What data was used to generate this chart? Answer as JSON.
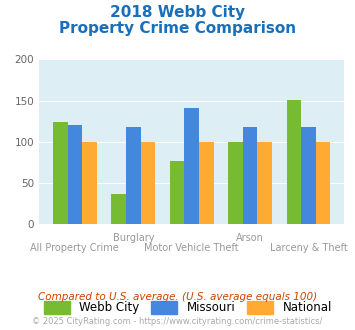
{
  "title_line1": "2018 Webb City",
  "title_line2": "Property Crime Comparison",
  "title_color": "#1a6fbb",
  "categories": [
    "All Property Crime",
    "Burglary",
    "Motor Vehicle Theft",
    "Arson",
    "Larceny & Theft"
  ],
  "x_labels_top": [
    "",
    "Burglary",
    "",
    "Arson",
    ""
  ],
  "x_labels_bottom": [
    "All Property Crime",
    "",
    "Motor Vehicle Theft",
    "",
    "Larceny & Theft"
  ],
  "webb_city": [
    124,
    37,
    77,
    100,
    151
  ],
  "missouri": [
    120,
    118,
    141,
    118,
    118
  ],
  "national": [
    100,
    100,
    100,
    100,
    100
  ],
  "bar_colors": {
    "webb_city": "#77bb33",
    "missouri": "#4488dd",
    "national": "#ffaa33"
  },
  "ylim": [
    0,
    200
  ],
  "yticks": [
    0,
    50,
    100,
    150,
    200
  ],
  "legend_labels": [
    "Webb City",
    "Missouri",
    "National"
  ],
  "footnote1": "Compared to U.S. average. (U.S. average equals 100)",
  "footnote2": "© 2025 CityRating.com - https://www.cityrating.com/crime-statistics/",
  "footnote1_color": "#cc4400",
  "footnote2_color": "#aaaaaa",
  "bg_color": "#ddeef5"
}
